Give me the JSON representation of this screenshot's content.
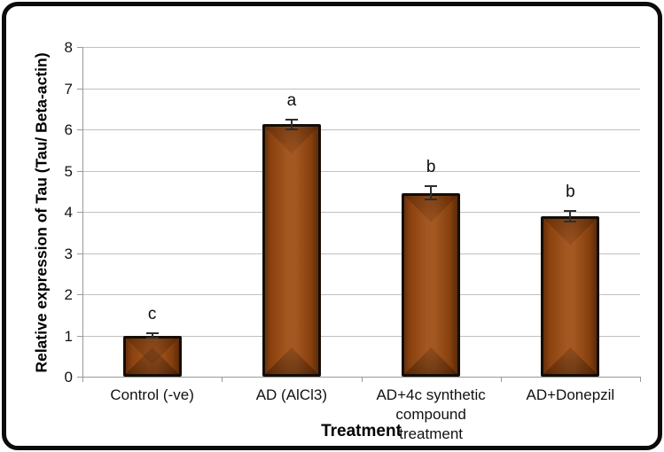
{
  "figure": {
    "background": "#FFFFFF",
    "frame_border_color": "#0B0B0B"
  },
  "chart_data": {
    "type": "bar",
    "title": "",
    "xlabel": "Treatment",
    "ylabel": "Relative expression of Tau (Tau/ Beta-actin)",
    "ylim": [
      0,
      8
    ],
    "yticks": [
      0,
      1,
      2,
      3,
      4,
      5,
      6,
      7,
      8
    ],
    "grid": true,
    "legend_position": "none",
    "categories": [
      "Control (-ve)",
      "AD (AlCl3)",
      "AD+4c synthetic compound treatment",
      "AD+Donepzil"
    ],
    "values": [
      1.0,
      6.12,
      4.46,
      3.9
    ],
    "error_bars": [
      0.08,
      0.14,
      0.18,
      0.15
    ],
    "significance_letters": [
      "c",
      "a",
      "b",
      "b"
    ],
    "bar_color": "#9C4A10",
    "bar_border_color": "#150D05",
    "gridline_color": "#C0C0C0",
    "axis_color": "#999999",
    "error_bar_color": "#2E2E2E"
  }
}
